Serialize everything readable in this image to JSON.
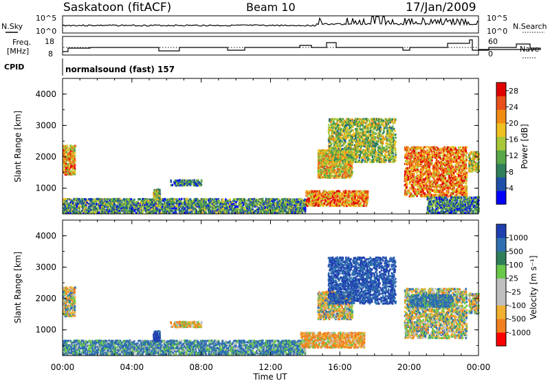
{
  "header": {
    "station": "Saskatoon (fitACF)",
    "beam": "Beam 10",
    "date": "17/Jan/2009"
  },
  "noise_panel": {
    "left_label": "N.Sky",
    "right_label": "N.Search",
    "y_ticks": [
      "10^5",
      "10^0"
    ]
  },
  "freq_panel": {
    "left_label_1": "Freq.",
    "left_label_2": "[MHz]",
    "right_label": "Nave",
    "left_ticks": [
      "18",
      "8"
    ],
    "right_ticks": [
      "60",
      "0"
    ]
  },
  "cpid": {
    "label": "CPID",
    "value": "normalsound (fast) 157"
  },
  "colors": {
    "power_scale": [
      "#0000ff",
      "#1f4fa8",
      "#2f7f5a",
      "#5aa84a",
      "#a8c83a",
      "#f0c020",
      "#f08c14",
      "#e8501c",
      "#e00000"
    ],
    "velocity_scale": [
      "#2040b0",
      "#2f6fb0",
      "#2f7f5a",
      "#6ac84a",
      "#bfbfbf",
      "#bfbfbf",
      "#f0b030",
      "#f08020",
      "#ff0000"
    ]
  },
  "chart_data": [
    {
      "type": "heatmap",
      "name": "power",
      "ylabel": "Slant Range [km]",
      "xlabel": "Time UT",
      "xlim": [
        "00:00",
        "24:00"
      ],
      "ylim": [
        180,
        4500
      ],
      "x_ticks": [
        "00:00",
        "04:00",
        "08:00",
        "12:00",
        "16:00",
        "20:00",
        "00:00"
      ],
      "y_ticks": [
        "1000",
        "2000",
        "3000",
        "4000"
      ],
      "colorbar": {
        "label": "Power [dB]",
        "ticks": [
          "4",
          "8",
          "12",
          "16",
          "20",
          "24",
          "28"
        ],
        "range": [
          0,
          30
        ]
      },
      "regions": [
        {
          "t0": 0.0,
          "t1": 0.7,
          "r0": 1400,
          "r1": 2350,
          "value": 20
        },
        {
          "t0": 0.0,
          "t1": 14.0,
          "r0": 180,
          "r1": 650,
          "value": 10
        },
        {
          "t0": 5.2,
          "t1": 5.6,
          "r0": 600,
          "r1": 950,
          "value": 14
        },
        {
          "t0": 6.2,
          "t1": 8.0,
          "r0": 1050,
          "r1": 1250,
          "value": 8
        },
        {
          "t0": 14.0,
          "t1": 17.6,
          "r0": 400,
          "r1": 900,
          "value": 22
        },
        {
          "t0": 14.7,
          "t1": 16.7,
          "r0": 1300,
          "r1": 2200,
          "value": 18
        },
        {
          "t0": 15.3,
          "t1": 19.2,
          "r0": 1800,
          "r1": 3200,
          "value": 14
        },
        {
          "t0": 19.7,
          "t1": 23.3,
          "r0": 700,
          "r1": 2300,
          "value": 22
        },
        {
          "t0": 23.4,
          "t1": 24.0,
          "r0": 1500,
          "r1": 2150,
          "value": 16
        },
        {
          "t0": 21.0,
          "t1": 24.0,
          "r0": 180,
          "r1": 700,
          "value": 8
        }
      ]
    },
    {
      "type": "heatmap",
      "name": "velocity",
      "ylabel": "Slant Range [km]",
      "xlabel": "Time UT",
      "xlim": [
        "00:00",
        "24:00"
      ],
      "ylim": [
        180,
        4500
      ],
      "x_ticks": [
        "00:00",
        "04:00",
        "08:00",
        "12:00",
        "16:00",
        "20:00",
        "00:00"
      ],
      "y_ticks": [
        "1000",
        "2000",
        "3000",
        "4000"
      ],
      "colorbar": {
        "label": "Velocity [m s⁻¹]",
        "ticks": [
          "1000",
          "500",
          "100",
          "25",
          "-25",
          "-100",
          "-500",
          "-1000"
        ],
        "range": [
          -1000,
          1000
        ]
      },
      "regions": [
        {
          "t0": 0.0,
          "t1": 0.7,
          "r0": 1400,
          "r1": 2350,
          "value": 0
        },
        {
          "t0": 0.0,
          "t1": 14.0,
          "r0": 180,
          "r1": 650,
          "value": 150
        },
        {
          "t0": 5.2,
          "t1": 5.6,
          "r0": 600,
          "r1": 950,
          "value": 600
        },
        {
          "t0": 6.2,
          "t1": 8.0,
          "r0": 1050,
          "r1": 1250,
          "value": -50
        },
        {
          "t0": 13.7,
          "t1": 17.4,
          "r0": 400,
          "r1": 900,
          "value": -100
        },
        {
          "t0": 14.7,
          "t1": 16.7,
          "r0": 1300,
          "r1": 2200,
          "value": 0
        },
        {
          "t0": 15.3,
          "t1": 19.2,
          "r0": 1800,
          "r1": 3300,
          "value": 500
        },
        {
          "t0": 19.7,
          "t1": 23.3,
          "r0": 700,
          "r1": 2300,
          "value": 10
        },
        {
          "t0": 20.0,
          "t1": 22.5,
          "r0": 1700,
          "r1": 2100,
          "value": 200
        },
        {
          "t0": 23.4,
          "t1": 24.0,
          "r0": 1500,
          "r1": 2150,
          "value": 0
        }
      ]
    }
  ]
}
